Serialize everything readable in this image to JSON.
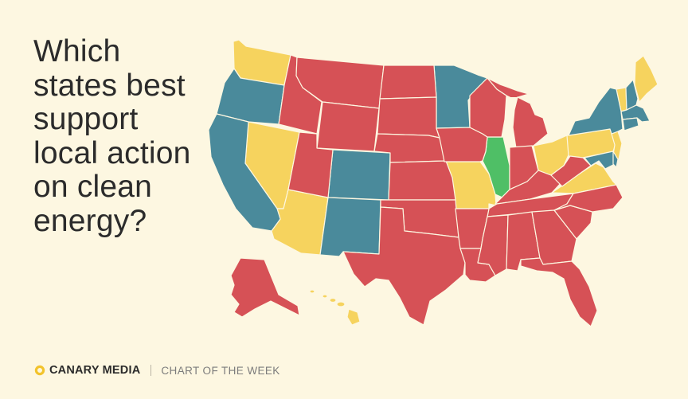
{
  "title": "Which\nstates best\nsupport\nlocal action\non clean\nenergy?",
  "footer": {
    "brand": "CANARY MEDIA",
    "tagline": "CHART OF THE WEEK"
  },
  "colors": {
    "background": "#fdf7e1",
    "red": "#d65156",
    "yellow": "#f6d35e",
    "teal": "#4a8a9b",
    "green": "#4fbf66",
    "brand_yellow": "#f2c32c"
  },
  "categories": {
    "red": [
      "ID",
      "MT",
      "WY",
      "UT",
      "ND",
      "SD",
      "NE",
      "KS",
      "OK",
      "TX",
      "IA",
      "AR",
      "LA",
      "MS",
      "AL",
      "GA",
      "FL",
      "SC",
      "NC",
      "TN",
      "KY",
      "IN",
      "WI",
      "MI",
      "WV",
      "AK"
    ],
    "yellow": [
      "WA",
      "NV",
      "AZ",
      "MO",
      "OH",
      "PA",
      "VA",
      "VT",
      "ME",
      "HI",
      "NJ"
    ],
    "teal": [
      "OR",
      "CA",
      "CO",
      "NM",
      "MN",
      "NY",
      "NH",
      "MA",
      "CT",
      "MD",
      "DE"
    ],
    "green": [
      "IL"
    ]
  }
}
